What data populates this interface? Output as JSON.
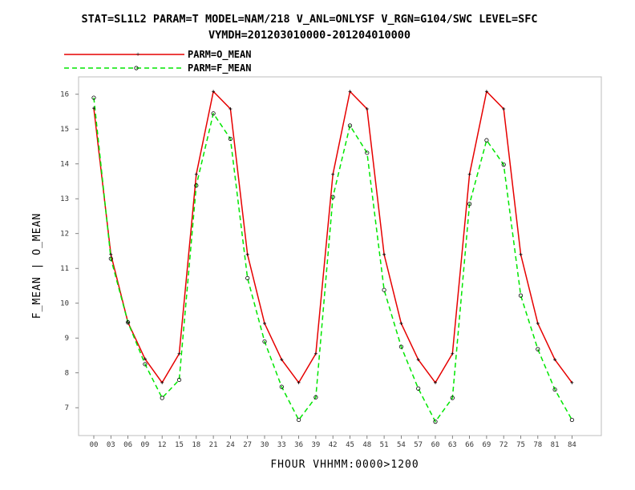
{
  "chart_data": {
    "type": "line",
    "title_line1": "STAT=SL1L2 PARAM=T MODEL=NAM/218 V_ANL=ONLYSF V_RGN=G104/SWC LEVEL=SFC",
    "title_line2": "VYMDH=201203010000-201204010000",
    "xlabel": "FHOUR VHHMM:0000>1200",
    "ylabel": "F_MEAN | O_MEAN",
    "categories": [
      "00",
      "03",
      "06",
      "09",
      "12",
      "15",
      "18",
      "21",
      "24",
      "27",
      "30",
      "33",
      "36",
      "39",
      "42",
      "45",
      "48",
      "51",
      "54",
      "57",
      "60",
      "63",
      "66",
      "69",
      "72",
      "75",
      "78",
      "81",
      "84"
    ],
    "ylim": [
      6.2,
      16.5
    ],
    "yticks": [
      7,
      8,
      9,
      10,
      11,
      12,
      13,
      14,
      15,
      16
    ],
    "legend_position": "top-left",
    "series": [
      {
        "name": "PARM=O_MEAN",
        "color": "#e60000",
        "dash": "solid",
        "marker": "plus",
        "values": [
          15.6,
          11.4,
          9.45,
          8.4,
          7.72,
          8.55,
          13.7,
          16.08,
          15.58,
          11.4,
          9.42,
          8.38,
          7.72,
          8.55,
          13.7,
          16.08,
          15.58,
          11.4,
          9.42,
          8.38,
          7.72,
          8.55,
          13.7,
          16.08,
          15.58,
          11.4,
          9.42,
          8.38,
          7.72
        ]
      },
      {
        "name": "PARM=F_MEAN",
        "color": "#00e600",
        "dash": "dashed",
        "marker": "circle",
        "values": [
          15.9,
          11.28,
          9.45,
          8.25,
          7.28,
          7.8,
          13.38,
          15.45,
          14.72,
          10.72,
          8.9,
          7.6,
          6.65,
          7.3,
          13.05,
          15.1,
          14.32,
          10.38,
          8.75,
          7.55,
          6.6,
          7.28,
          12.85,
          14.68,
          13.98,
          10.22,
          8.68,
          7.52,
          6.65
        ]
      }
    ]
  }
}
